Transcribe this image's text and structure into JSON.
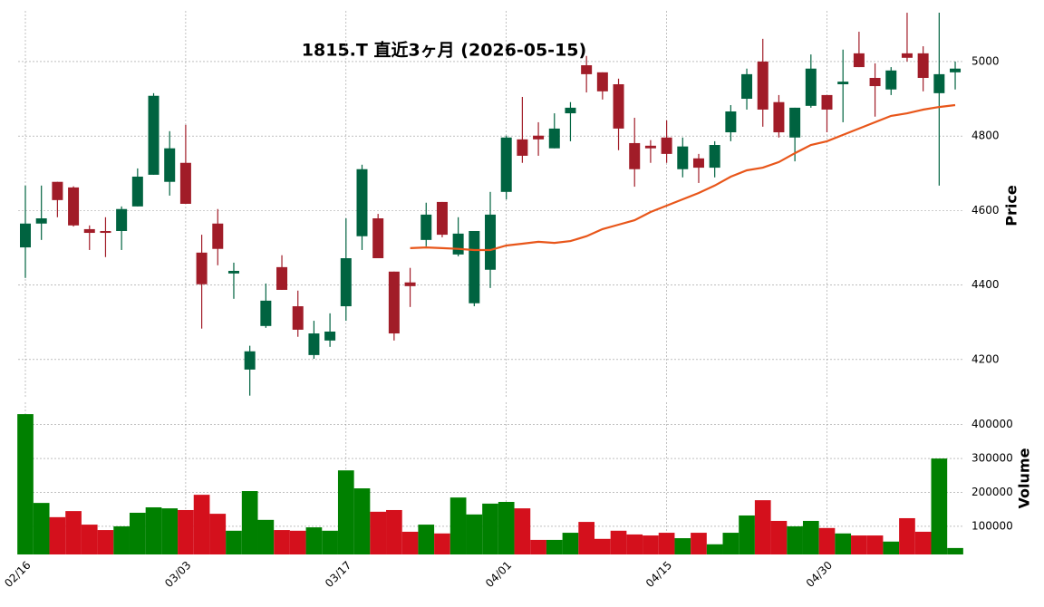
{
  "chart_data": {
    "type": "candlestick",
    "title": "1815.T  直近3ヶ月  (2026-05-15)",
    "ylabel": "Price",
    "categories": [
      "02/16",
      null,
      null,
      null,
      null,
      null,
      null,
      null,
      null,
      null,
      "03/03",
      null,
      null,
      null,
      null,
      null,
      null,
      null,
      null,
      null,
      "03/17",
      null,
      null,
      null,
      null,
      null,
      null,
      null,
      null,
      null,
      "04/01",
      null,
      null,
      null,
      null,
      null,
      null,
      null,
      null,
      null,
      "04/15",
      null,
      null,
      null,
      null,
      null,
      null,
      null,
      null,
      null,
      "04/30",
      null,
      null,
      null,
      null,
      null,
      null,
      null,
      null
    ],
    "open": [
      4501,
      4565,
      4677,
      4662,
      4550,
      4545,
      4545,
      4611,
      4696,
      4677,
      4728,
      4487,
      4565,
      4431,
      4173,
      4290,
      4448,
      4343,
      4212,
      4251,
      4343,
      4531,
      4579,
      4436,
      4407,
      4521,
      4623,
      4482,
      4351,
      4441,
      4650,
      4791,
      4801,
      4767,
      4861,
      4990,
      4971,
      4939,
      4781,
      4774,
      4796,
      4711,
      4740,
      4715,
      4810,
      4900,
      5000,
      4891,
      4796,
      4881,
      4910,
      4939,
      5022,
      4956,
      4925,
      5022,
      5022,
      4915,
      4971
    ],
    "high": [
      4667,
      4667,
      4677,
      4665,
      4560,
      4582,
      4611,
      4713,
      4915,
      4813,
      4830,
      4535,
      4604,
      4460,
      4237,
      4404,
      4480,
      4385,
      4304,
      4324,
      4579,
      4723,
      4591,
      4436,
      4446,
      4621,
      4623,
      4582,
      4545,
      4650,
      4801,
      4905,
      4837,
      4861,
      4891,
      5015,
      4971,
      4954,
      4849,
      4789,
      4842,
      4796,
      4752,
      4786,
      4883,
      4981,
      5061,
      4910,
      4876,
      5019,
      4910,
      5032,
      5080,
      4995,
      4985,
      5131,
      5041,
      5131,
      5000
    ],
    "low": [
      4419,
      4521,
      4582,
      4557,
      4494,
      4475,
      4494,
      4611,
      4696,
      4640,
      4618,
      4283,
      4453,
      4363,
      4103,
      4285,
      4387,
      4261,
      4202,
      4234,
      4304,
      4494,
      4472,
      4251,
      4341,
      4504,
      4528,
      4477,
      4343,
      4392,
      4630,
      4728,
      4747,
      4767,
      4786,
      4917,
      4898,
      4762,
      4664,
      4728,
      4728,
      4689,
      4674,
      4689,
      4786,
      4871,
      4825,
      4796,
      4732,
      4876,
      4810,
      4837,
      4985,
      4852,
      4910,
      5000,
      4920,
      4667,
      4925
    ],
    "close": [
      4565,
      4579,
      4628,
      4560,
      4540,
      4540,
      4604,
      4691,
      4908,
      4767,
      4618,
      4402,
      4497,
      4438,
      4222,
      4358,
      4387,
      4280,
      4270,
      4275,
      4472,
      4711,
      4472,
      4270,
      4397,
      4589,
      4535,
      4538,
      4545,
      4589,
      4796,
      4747,
      4791,
      4820,
      4876,
      4966,
      4920,
      4820,
      4711,
      4767,
      4752,
      4772,
      4715,
      4776,
      4866,
      4966,
      4871,
      4810,
      4876,
      4981,
      4871,
      4946,
      4985,
      4934,
      4976,
      5010,
      4956,
      4966,
      4981
    ],
    "up_color": "#006340",
    "down_color": "#a11c28",
    "ylim": [
      4095,
      5136
    ],
    "yticks": [
      4200,
      4400,
      4600,
      4800,
      5000
    ],
    "grid": true,
    "moving_average": {
      "color": "#e8561a",
      "values": [
        null,
        null,
        null,
        null,
        null,
        null,
        null,
        null,
        null,
        null,
        null,
        null,
        null,
        null,
        null,
        null,
        null,
        null,
        null,
        null,
        null,
        null,
        null,
        null,
        4499,
        4501,
        4499,
        4497,
        4494,
        4494,
        4506,
        4511,
        4516,
        4513,
        4518,
        4531,
        4550,
        4562,
        4574,
        4596,
        4613,
        4630,
        4647,
        4667,
        4691,
        4708,
        4715,
        4730,
        4754,
        4776,
        4786,
        4803,
        4820,
        4837,
        4854,
        4861,
        4871,
        4878,
        4883
      ]
    },
    "volume": {
      "type": "bar",
      "ylabel": "Volume",
      "values": [
        431000,
        169000,
        127000,
        145000,
        105000,
        89000,
        100000,
        140000,
        156000,
        153000,
        148000,
        193000,
        137000,
        87000,
        204000,
        119000,
        89000,
        87000,
        97000,
        87000,
        265000,
        212000,
        143000,
        148000,
        84000,
        105000,
        79000,
        185000,
        135000,
        167000,
        172000,
        153000,
        60000,
        60000,
        81000,
        113000,
        63000,
        87000,
        76000,
        73000,
        81000,
        65000,
        81000,
        47000,
        81000,
        132000,
        177000,
        116000,
        100000,
        116000,
        95000,
        79000,
        73000,
        73000,
        55000,
        124000,
        84000,
        300000,
        36000
      ],
      "up_color": "#008000",
      "down_color": "#d4101c",
      "ylim": [
        17000,
        466000
      ],
      "yticks": [
        100000,
        200000,
        300000,
        400000
      ]
    }
  }
}
